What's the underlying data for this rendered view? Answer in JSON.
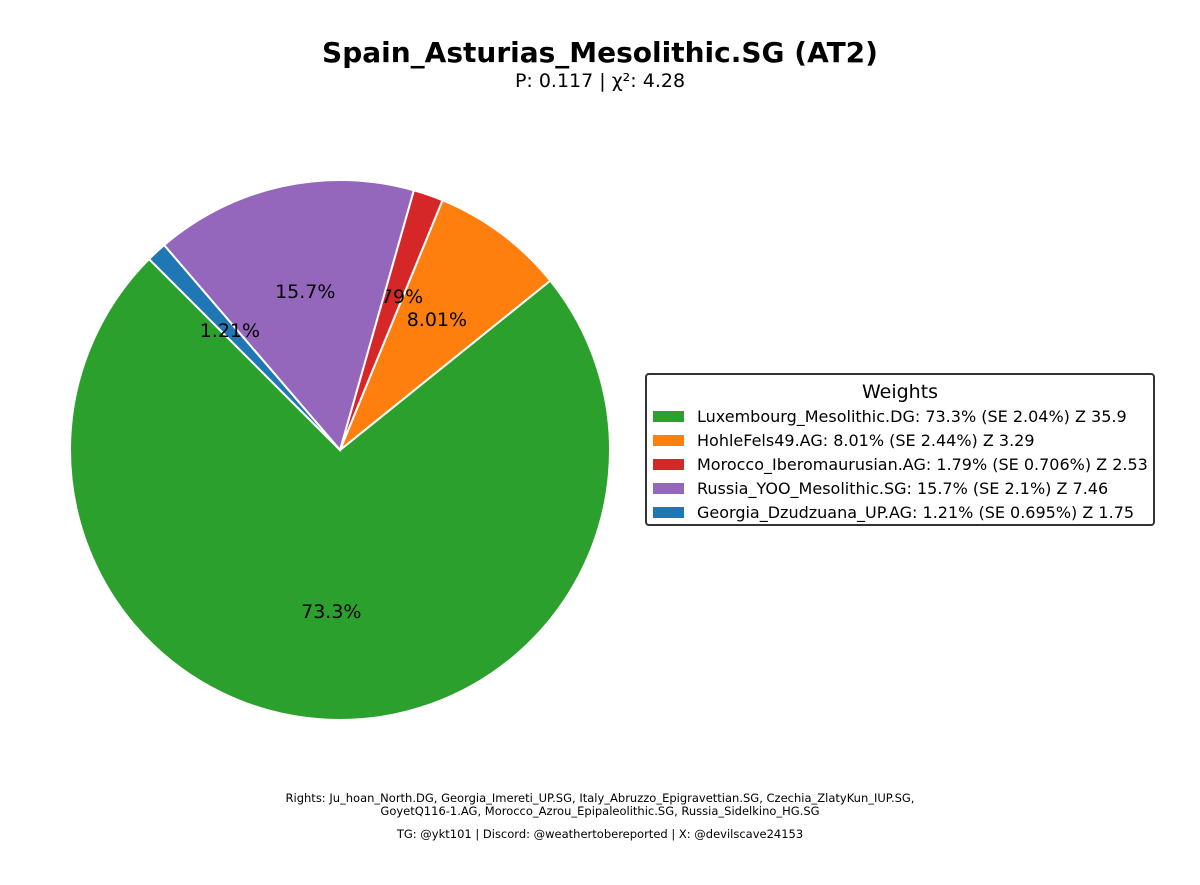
{
  "chart_data": {
    "type": "pie",
    "title": "Spain_Asturias_Mesolithic.SG (AT2)",
    "subtitle": "P: 0.117 | χ²: 4.28",
    "slices": [
      {
        "label": "Luxembourg_Mesolithic.DG",
        "value": 73.3,
        "pct_label": "73.3%",
        "legend": "Luxembourg_Mesolithic.DG: 73.3% (SE 2.04%) Z 35.9",
        "color": "#2ca02c"
      },
      {
        "label": "HohleFels49.AG",
        "value": 8.01,
        "pct_label": "8.01%",
        "legend": "HohleFels49.AG: 8.01% (SE 2.44%) Z 3.29",
        "color": "#ff7f0e"
      },
      {
        "label": "Morocco_Iberomaurusian.AG",
        "value": 1.79,
        "pct_label": "1.79%",
        "legend": "Morocco_Iberomaurusian.AG: 1.79% (SE 0.706%) Z 2.53",
        "color": "#d62728"
      },
      {
        "label": "Russia_YOO_Mesolithic.SG",
        "value": 15.7,
        "pct_label": "15.7%",
        "legend": "Russia_YOO_Mesolithic.SG: 15.7% (SE 2.1%) Z 7.46",
        "color": "#9467bd"
      },
      {
        "label": "Georgia_Dzudzuana_UP.AG",
        "value": 1.21,
        "pct_label": "1.21%",
        "legend": "Georgia_Dzudzuana_UP.AG: 1.21% (SE 0.695%) Z 1.75",
        "color": "#1f77b4"
      }
    ],
    "legend_title": "Weights",
    "legend_placement": "right"
  },
  "footer": {
    "rights_line1": "Rights: Ju_hoan_North.DG, Georgia_Imereti_UP.SG, Italy_Abruzzo_Epigravettian.SG, Czechia_ZlatyKun_IUP.SG,",
    "rights_line2": "GoyetQ116-1.AG, Morocco_Azrou_Epipaleolithic.SG, Russia_Sidelkino_HG.SG",
    "contacts": "TG: @ykt101 | Discord: @weathertobereported | X: @devilscave24153"
  }
}
